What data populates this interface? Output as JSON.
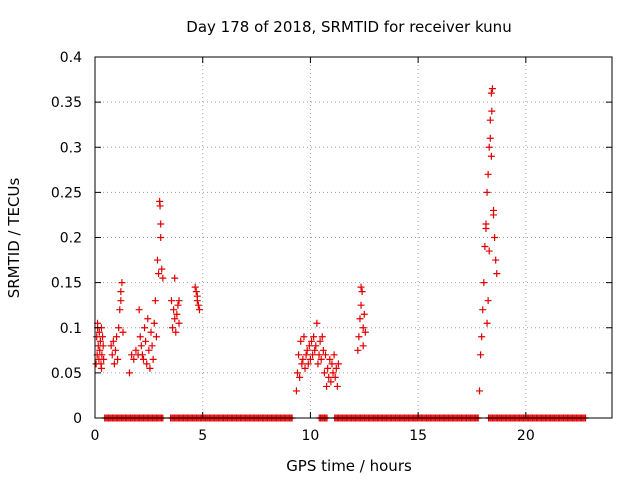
{
  "chart_data": {
    "type": "scatter",
    "title": "Day 178 of 2018, SRMTID for receiver kunu",
    "xlabel": "GPS time / hours",
    "ylabel": "SRMTID / TECUs",
    "xlim": [
      0,
      24
    ],
    "ylim": [
      0,
      0.4
    ],
    "x_ticks": [
      0,
      5,
      10,
      15,
      20
    ],
    "x_tick_labels": [
      "0",
      "5",
      "10",
      "15",
      "20"
    ],
    "y_ticks": [
      0,
      0.05,
      0.1,
      0.15,
      0.2,
      0.25,
      0.3,
      0.35,
      0.4
    ],
    "y_tick_labels": [
      "0",
      "0.05",
      "0.1",
      "0.15",
      "0.2",
      "0.25",
      "0.3",
      "0.35",
      "0.4"
    ],
    "grid": true,
    "marker": "+",
    "marker_color": "#e00000",
    "series": [
      {
        "name": "SRMTID",
        "points": [
          [
            0.05,
            0.06
          ],
          [
            0.08,
            0.09
          ],
          [
            0.1,
            0.07
          ],
          [
            0.12,
            0.1
          ],
          [
            0.15,
            0.08
          ],
          [
            0.18,
            0.065
          ],
          [
            0.2,
            0.095
          ],
          [
            0.22,
            0.075
          ],
          [
            0.25,
            0.085
          ],
          [
            0.28,
            0.06
          ],
          [
            0.3,
            0.1
          ],
          [
            0.32,
            0.07
          ],
          [
            0.35,
            0.09
          ],
          [
            0.38,
            0.08
          ],
          [
            0.4,
            0.065
          ],
          [
            0.12,
            0.105
          ],
          [
            0.3,
            0.055
          ],
          [
            0.75,
            0.08
          ],
          [
            0.8,
            0.07
          ],
          [
            0.85,
            0.085
          ],
          [
            0.9,
            0.06
          ],
          [
            0.95,
            0.075
          ],
          [
            1.0,
            0.09
          ],
          [
            1.05,
            0.065
          ],
          [
            1.1,
            0.1
          ],
          [
            1.15,
            0.12
          ],
          [
            1.2,
            0.14
          ],
          [
            1.25,
            0.15
          ],
          [
            1.3,
            0.095
          ],
          [
            1.2,
            0.13
          ],
          [
            1.6,
            0.05
          ],
          [
            1.7,
            0.07
          ],
          [
            1.8,
            0.065
          ],
          [
            1.9,
            0.075
          ],
          [
            2.0,
            0.07
          ],
          [
            2.05,
            0.12
          ],
          [
            2.1,
            0.09
          ],
          [
            2.15,
            0.08
          ],
          [
            2.2,
            0.07
          ],
          [
            2.25,
            0.065
          ],
          [
            2.3,
            0.1
          ],
          [
            2.35,
            0.085
          ],
          [
            2.4,
            0.06
          ],
          [
            2.45,
            0.11
          ],
          [
            2.5,
            0.075
          ],
          [
            2.55,
            0.055
          ],
          [
            2.6,
            0.095
          ],
          [
            2.65,
            0.08
          ],
          [
            2.7,
            0.065
          ],
          [
            2.75,
            0.105
          ],
          [
            2.8,
            0.13
          ],
          [
            2.85,
            0.09
          ],
          [
            2.9,
            0.175
          ],
          [
            2.95,
            0.16
          ],
          [
            3.0,
            0.24
          ],
          [
            3.02,
            0.235
          ],
          [
            3.05,
            0.2
          ],
          [
            3.05,
            0.215
          ],
          [
            3.1,
            0.165
          ],
          [
            3.15,
            0.155
          ],
          [
            3.55,
            0.13
          ],
          [
            3.6,
            0.1
          ],
          [
            3.65,
            0.12
          ],
          [
            3.7,
            0.11
          ],
          [
            3.75,
            0.095
          ],
          [
            3.8,
            0.115
          ],
          [
            3.85,
            0.125
          ],
          [
            3.9,
            0.105
          ],
          [
            3.7,
            0.155
          ],
          [
            3.9,
            0.13
          ],
          [
            4.65,
            0.145
          ],
          [
            4.7,
            0.14
          ],
          [
            4.75,
            0.13
          ],
          [
            4.8,
            0.125
          ],
          [
            4.85,
            0.12
          ],
          [
            4.75,
            0.135
          ],
          [
            9.35,
            0.03
          ],
          [
            9.4,
            0.05
          ],
          [
            9.45,
            0.07
          ],
          [
            9.5,
            0.045
          ],
          [
            9.55,
            0.085
          ],
          [
            9.6,
            0.06
          ],
          [
            9.65,
            0.065
          ],
          [
            9.7,
            0.09
          ],
          [
            9.75,
            0.055
          ],
          [
            9.8,
            0.07
          ],
          [
            9.85,
            0.075
          ],
          [
            9.9,
            0.06
          ],
          [
            9.95,
            0.08
          ],
          [
            10.0,
            0.065
          ],
          [
            10.05,
            0.085
          ],
          [
            10.1,
            0.07
          ],
          [
            10.15,
            0.09
          ],
          [
            10.2,
            0.075
          ],
          [
            10.25,
            0.08
          ],
          [
            10.3,
            0.105
          ],
          [
            10.35,
            0.06
          ],
          [
            10.4,
            0.07
          ],
          [
            10.45,
            0.085
          ],
          [
            10.5,
            0.065
          ],
          [
            10.55,
            0.09
          ],
          [
            10.6,
            0.075
          ],
          [
            10.65,
            0.05
          ],
          [
            10.7,
            0.07
          ],
          [
            10.75,
            0.035
          ],
          [
            10.8,
            0.055
          ],
          [
            10.85,
            0.045
          ],
          [
            10.9,
            0.065
          ],
          [
            10.95,
            0.04
          ],
          [
            11.0,
            0.06
          ],
          [
            11.05,
            0.05
          ],
          [
            11.1,
            0.07
          ],
          [
            11.15,
            0.045
          ],
          [
            11.2,
            0.055
          ],
          [
            11.25,
            0.035
          ],
          [
            11.3,
            0.06
          ],
          [
            12.2,
            0.075
          ],
          [
            12.25,
            0.09
          ],
          [
            12.3,
            0.11
          ],
          [
            12.35,
            0.125
          ],
          [
            12.4,
            0.14
          ],
          [
            12.45,
            0.1
          ],
          [
            12.5,
            0.115
          ],
          [
            12.55,
            0.095
          ],
          [
            12.35,
            0.145
          ],
          [
            12.45,
            0.08
          ],
          [
            17.85,
            0.03
          ],
          [
            17.9,
            0.07
          ],
          [
            17.95,
            0.09
          ],
          [
            18.0,
            0.12
          ],
          [
            18.05,
            0.15
          ],
          [
            18.1,
            0.19
          ],
          [
            18.15,
            0.21
          ],
          [
            18.2,
            0.25
          ],
          [
            18.25,
            0.27
          ],
          [
            18.3,
            0.3
          ],
          [
            18.35,
            0.33
          ],
          [
            18.4,
            0.36
          ],
          [
            18.45,
            0.365
          ],
          [
            18.42,
            0.34
          ],
          [
            18.35,
            0.31
          ],
          [
            18.4,
            0.29
          ],
          [
            18.5,
            0.23
          ],
          [
            18.55,
            0.2
          ],
          [
            18.6,
            0.175
          ],
          [
            18.65,
            0.16
          ],
          [
            18.3,
            0.185
          ],
          [
            18.5,
            0.225
          ],
          [
            18.2,
            0.105
          ],
          [
            18.25,
            0.13
          ],
          [
            18.15,
            0.215
          ]
        ]
      },
      {
        "name": "zero-level",
        "x_range": [
          0.45,
          22.8
        ],
        "step": 0.06,
        "value": 0,
        "gaps": [
          [
            3.2,
            3.5
          ],
          [
            9.2,
            10.4
          ],
          [
            10.8,
            11.1
          ],
          [
            17.8,
            18.25
          ]
        ]
      }
    ]
  }
}
